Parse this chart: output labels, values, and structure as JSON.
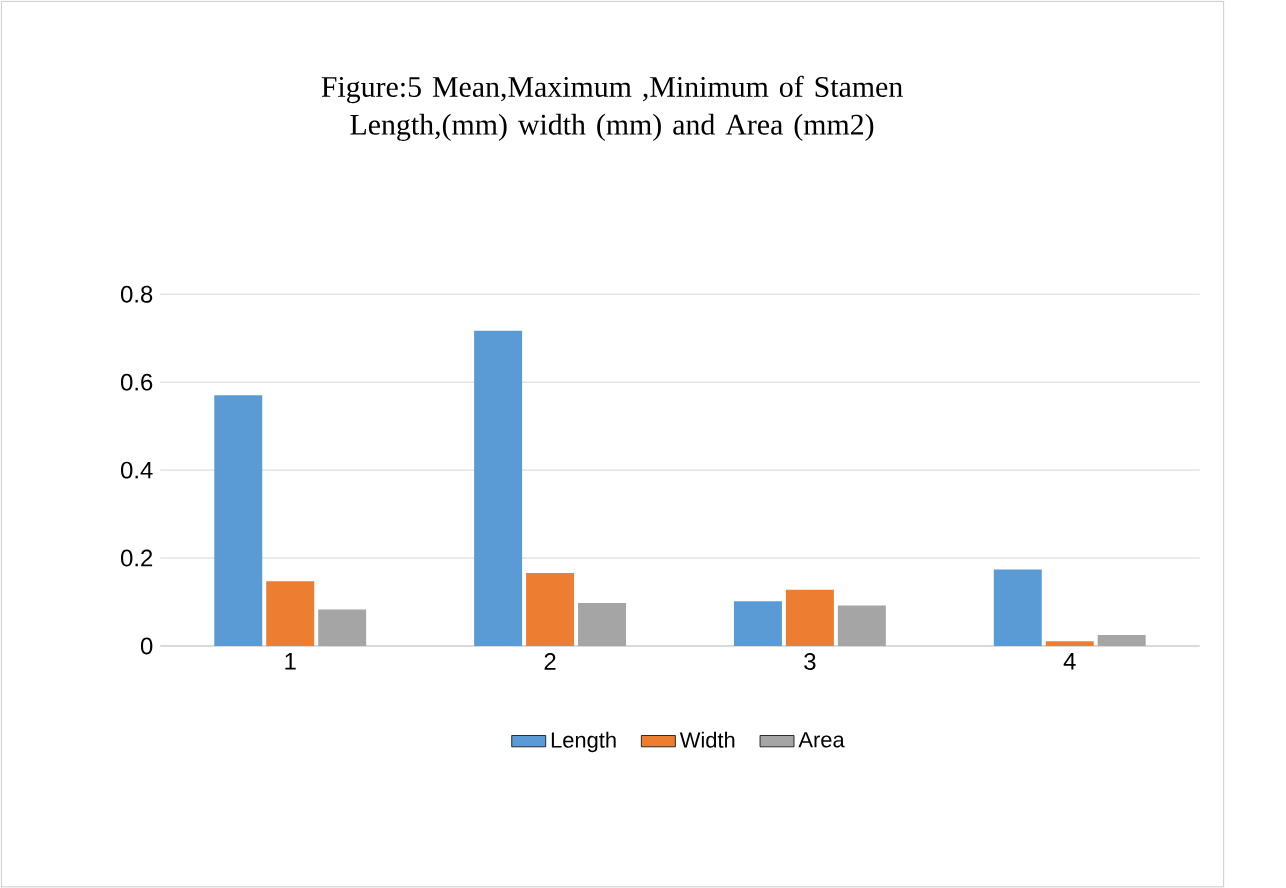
{
  "chart_data": {
    "type": "bar",
    "title": "Figure:5 Mean,Maximum ,Minimum of Stamen Length,(mm) width (mm) and Area (mm2)",
    "categories": [
      "1",
      "2",
      "3",
      "4"
    ],
    "series": [
      {
        "name": "Length",
        "color": "#5b9bd5",
        "values": [
          0.57,
          0.717,
          0.102,
          0.174
        ]
      },
      {
        "name": "Width",
        "color": "#ed7d31",
        "values": [
          0.147,
          0.166,
          0.128,
          0.011
        ]
      },
      {
        "name": "Area",
        "color": "#a5a5a5",
        "values": [
          0.083,
          0.098,
          0.092,
          0.025
        ]
      }
    ],
    "ylim": [
      0,
      0.8
    ],
    "yticks": [
      0,
      0.2,
      0.4,
      0.6,
      0.8
    ],
    "grid": "y",
    "legend": "bottom"
  }
}
